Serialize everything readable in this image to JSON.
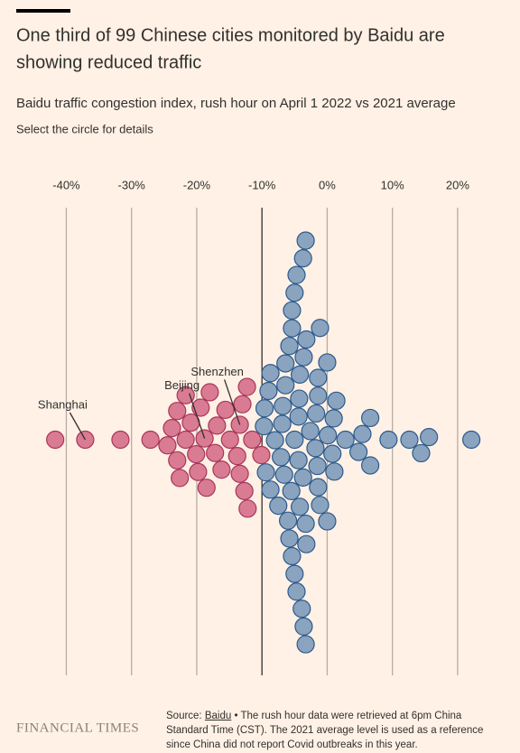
{
  "header": {
    "title": "One third of 99 Chinese cities monitored by Baidu are showing reduced traffic",
    "subtitle": "Baidu traffic congestion index, rush hour on April 1 2022 vs 2021 average",
    "instruction": "Select the circle for details"
  },
  "chart_data": {
    "type": "beeswarm",
    "values": [
      -41.7,
      -37.1,
      -31.7,
      -27.1,
      -22.6,
      -18.0,
      -13.4,
      -12.2,
      -13.0,
      -23.0,
      -19.4,
      -20.1,
      -17.2,
      -14.9,
      -24.5,
      -21.7,
      -18.5,
      -15.6,
      -12.7,
      -10.1,
      -23.8,
      -20.9,
      -16.9,
      -13.8,
      -11.5,
      -23.0,
      -19.8,
      -16.2,
      -13.4,
      -21.7,
      -18.8,
      -12.3,
      -3.2,
      -3.6,
      -4.2,
      -4.7,
      -5.0,
      -5.4,
      -6.0,
      -3.3,
      0,
      -8.7,
      -5.4,
      -1.1,
      -7.5,
      -4.4,
      -9.4,
      -6.6,
      -1.4,
      -3.6,
      1.4,
      -6.9,
      -4.3,
      -1.8,
      0.8,
      6.6,
      -8.7,
      -5.5,
      -3.3,
      5.4,
      14.4,
      -9.0,
      -5.8,
      -2.6,
      0,
      2.8,
      9.4,
      12.6,
      22.1,
      15.6,
      4.8,
      -7.1,
      -4.2,
      -1.5,
      1.0,
      6.6,
      -9.7,
      -6.8,
      -4.4,
      -1.7,
      1.1,
      -9.6,
      -6.4,
      -3.7,
      -1.4,
      -8.0,
      -5.0,
      -1.4,
      -6.4,
      -3.7,
      -1.1,
      -5.8,
      0.1,
      -5.4,
      -5.0,
      -4.7,
      -3.9,
      -3.3,
      -3.2
    ],
    "labels": [
      null,
      "Shanghai",
      null,
      null,
      null,
      null,
      "Shenzhen",
      null,
      null,
      null,
      null,
      null,
      null,
      null,
      null,
      null,
      null,
      null,
      null,
      null,
      null,
      null,
      null,
      null,
      null,
      null,
      null,
      null,
      null,
      null,
      "Beijing",
      null,
      null,
      null,
      null,
      null,
      null,
      null,
      null,
      null,
      null,
      null,
      null,
      null,
      null,
      null,
      null,
      null,
      null,
      null,
      null,
      null,
      null,
      null,
      null,
      null,
      null,
      null,
      null,
      null,
      null,
      null,
      null,
      null,
      null,
      null,
      null,
      null,
      null,
      null,
      null,
      null,
      null,
      null,
      null,
      null,
      null,
      null,
      null,
      null,
      null,
      null,
      null,
      null,
      null,
      null,
      null,
      null,
      null,
      null,
      null,
      null,
      null,
      null,
      null,
      null,
      null,
      null,
      null
    ],
    "xlim": [
      -42,
      23
    ],
    "xticks": [
      {
        "value": -40,
        "label": "-40%"
      },
      {
        "value": -30,
        "label": "-30%"
      },
      {
        "value": -20,
        "label": "-20%"
      },
      {
        "value": -10,
        "label": "-10%"
      },
      {
        "value": 0,
        "label": "0%"
      },
      {
        "value": 10,
        "label": "10%"
      },
      {
        "value": 20,
        "label": "20%"
      }
    ],
    "reference_line": -10,
    "color_below": "#d97b92",
    "stroke_below": "#a8365a",
    "color_above": "#8aa3bf",
    "stroke_above": "#2c5a8c",
    "grid": true
  },
  "footer": {
    "logo": "FINANCIAL TIMES",
    "source_prefix": "Source:",
    "source_link": "Baidu",
    "note": "• The rush hour data were retrieved at 6pm China Standard Time (CST). The 2021 average level is used as a reference since China did not report Covid outbreaks in this year."
  }
}
